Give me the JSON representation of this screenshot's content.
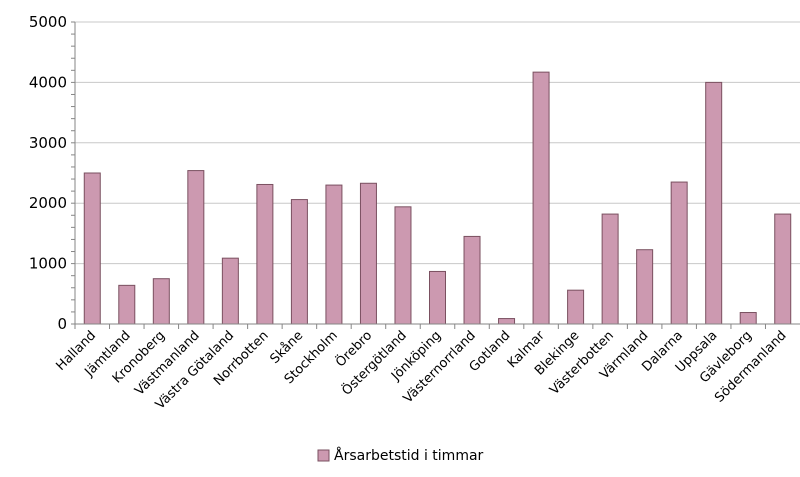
{
  "chart_data": {
    "type": "bar",
    "categories": [
      "Halland",
      "Jämtland",
      "Kronoberg",
      "Västmanland",
      "Västra Götaland",
      "Norrbotten",
      "Skåne",
      "Stockholm",
      "Örebro",
      "Östergötland",
      "Jönköping",
      "Västernorrland",
      "Gotland",
      "Kalmar",
      "Blekinge",
      "Västerbotten",
      "Värmland",
      "Dalarna",
      "Uppsala",
      "Gävleborg",
      "Södermanland"
    ],
    "series": [
      {
        "name": "Årsarbetstid i timmar",
        "values": [
          2500,
          640,
          750,
          2540,
          1090,
          2310,
          2060,
          2300,
          2330,
          1940,
          870,
          1450,
          90,
          4170,
          560,
          1820,
          1230,
          2350,
          4000,
          190,
          1820
        ]
      }
    ],
    "title": "",
    "xlabel": "",
    "ylabel": "",
    "ylim": [
      0,
      5000
    ],
    "yticks": [
      0,
      1000,
      2000,
      3000,
      4000,
      5000
    ],
    "grid": "horizontal",
    "legend_position": "bottom",
    "colors": {
      "bar_fill": "#cc99b0",
      "bar_stroke": "#7a5060",
      "grid": "#c8c8c8",
      "axis": "#868686"
    }
  }
}
